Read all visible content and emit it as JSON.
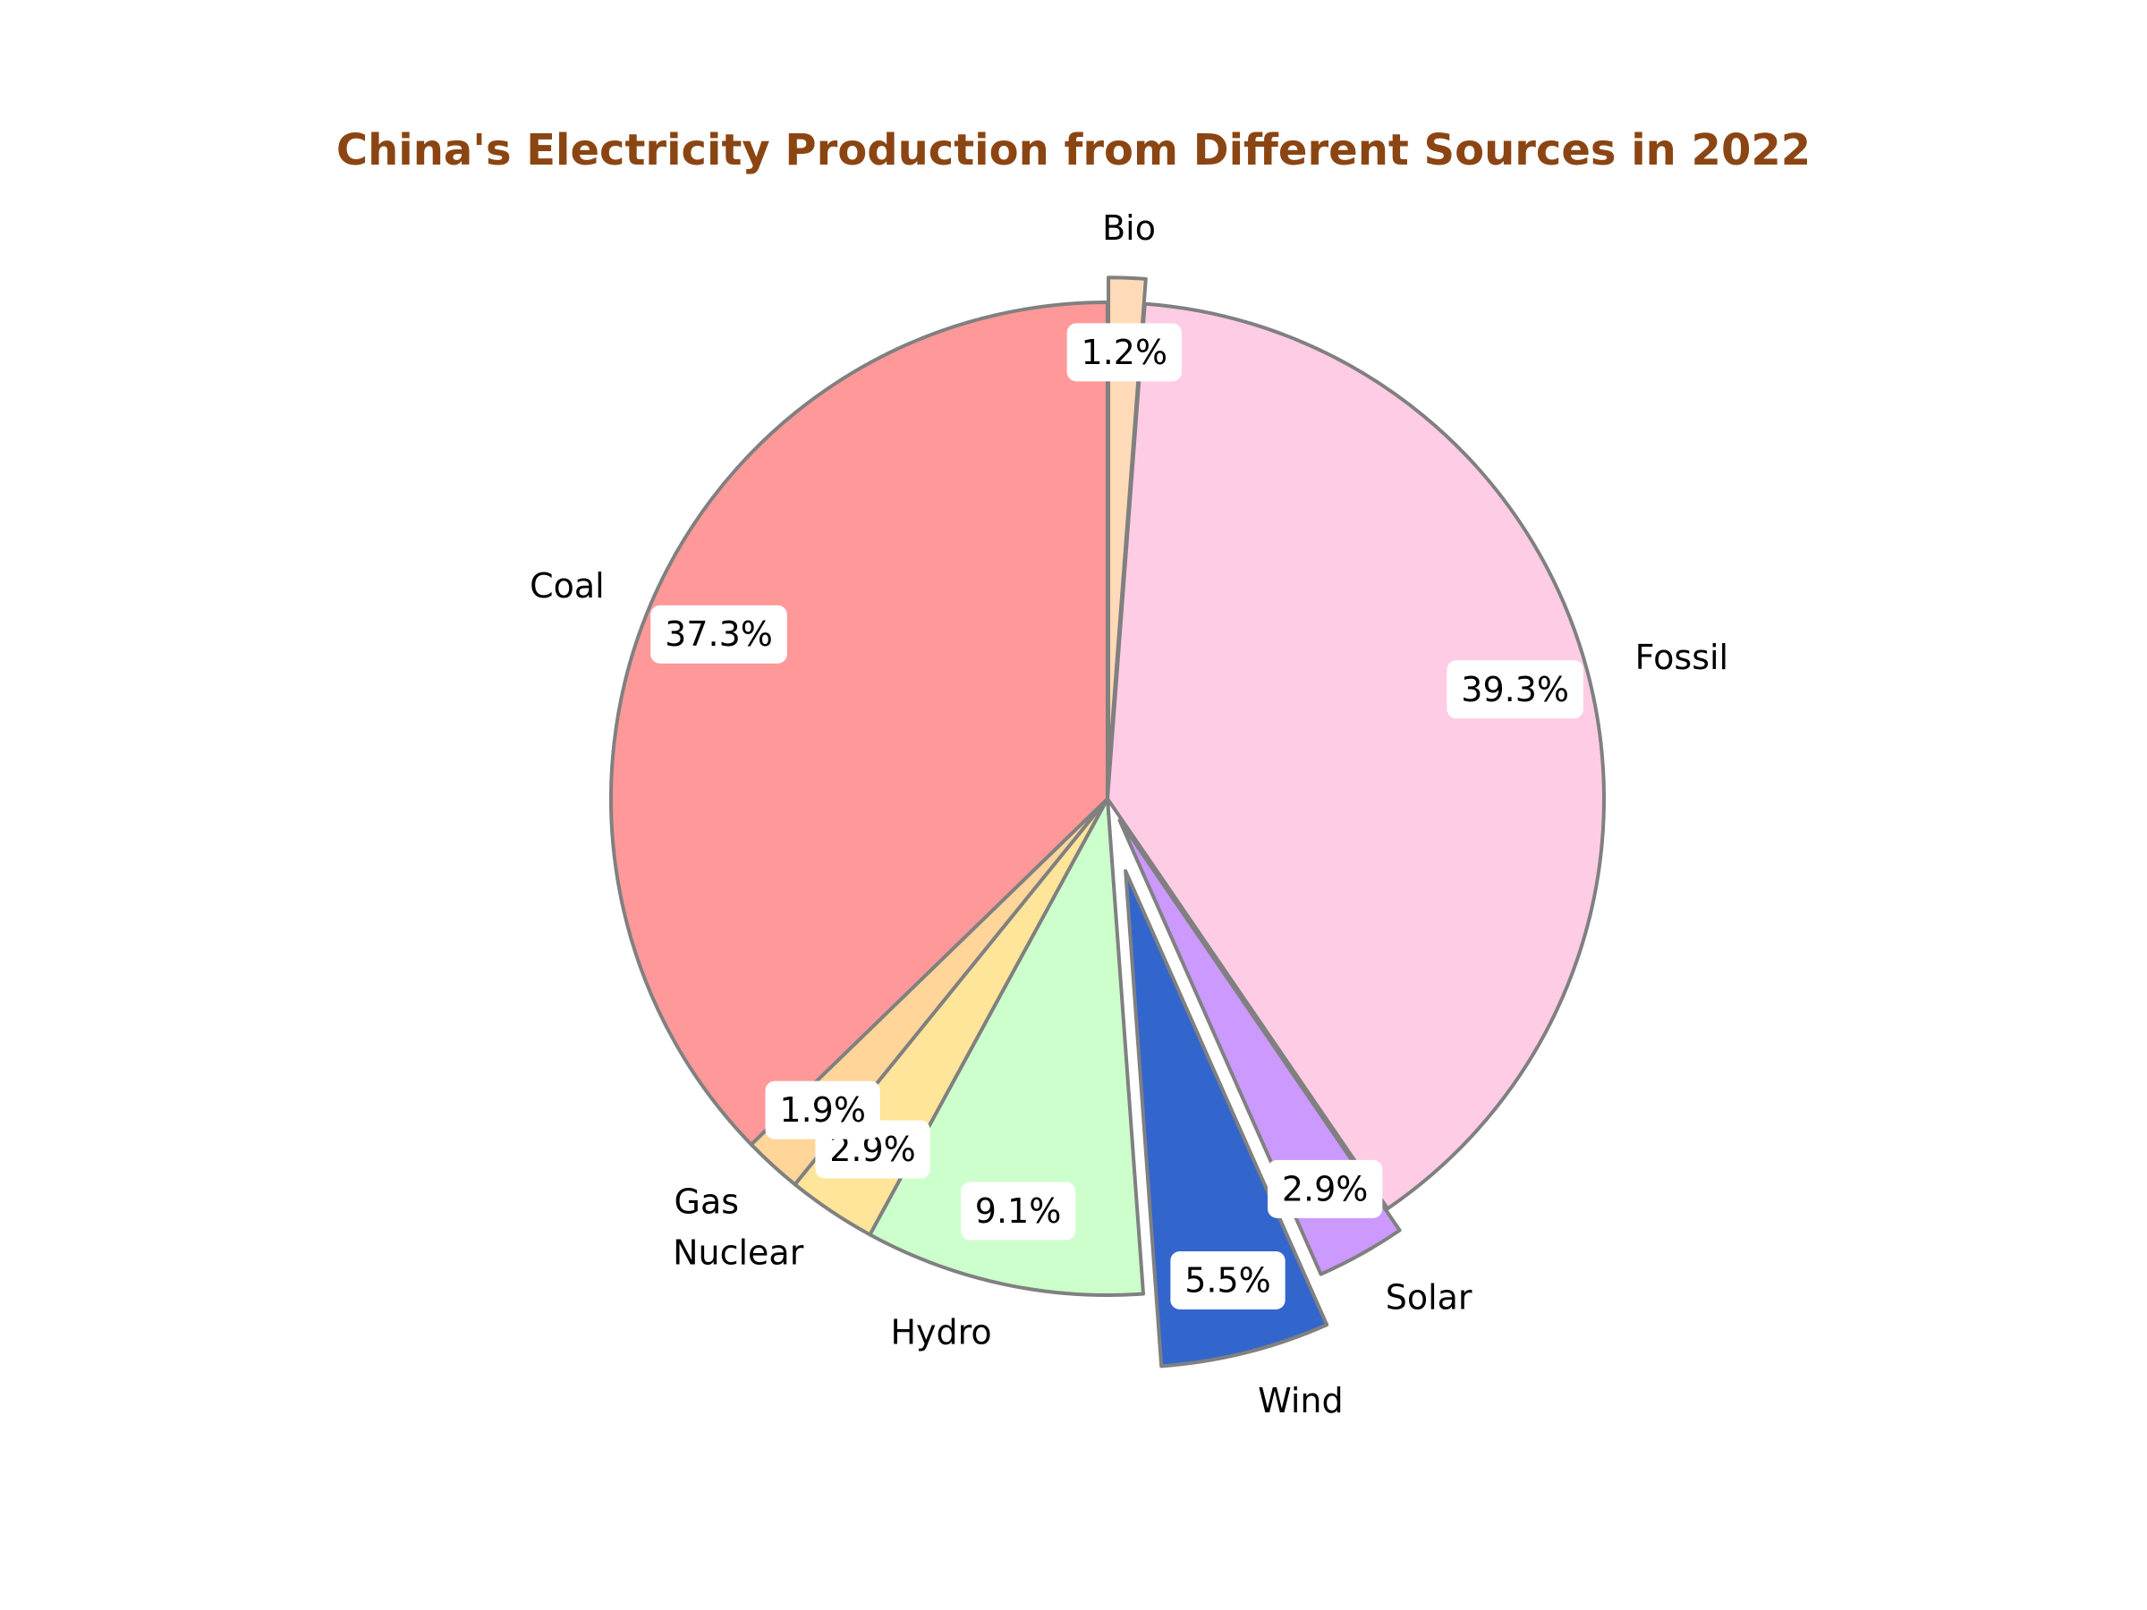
{
  "chart_data": {
    "type": "pie",
    "title": "China's Electricity Production from Different Sources in 2022",
    "categories": [
      "Bio",
      "Fossil",
      "Solar",
      "Wind",
      "Hydro",
      "Nuclear",
      "Gas",
      "Coal"
    ],
    "values": [
      1.2,
      39.3,
      2.9,
      5.5,
      9.1,
      2.9,
      1.9,
      37.3
    ],
    "labels": [
      "1.2%",
      "39.3%",
      "2.9%",
      "5.5%",
      "9.1%",
      "2.9%",
      "1.9%",
      "37.3%"
    ],
    "colors": [
      "#FFDAB9",
      "#FFCCE5",
      "#CC99FF",
      "#3366CC",
      "#CCFFCC",
      "#FFE599",
      "#FFD59A",
      "#FF9999"
    ],
    "exploded": [
      "Bio",
      "Solar",
      "Wind"
    ],
    "start_angle": "top",
    "direction": "clockwise",
    "title_color": "#8B4513",
    "edge_color": "#808080",
    "legend": "none"
  }
}
